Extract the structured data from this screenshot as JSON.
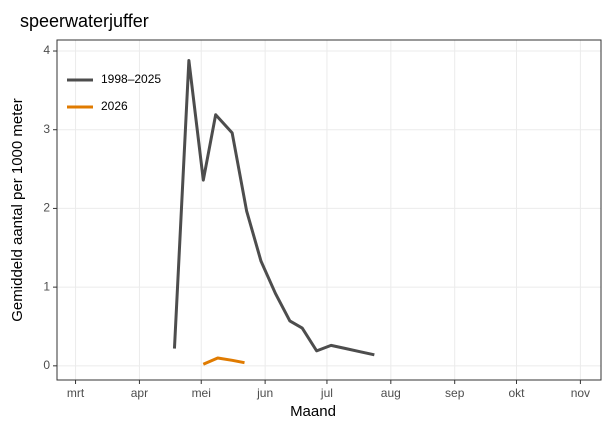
{
  "chart_data": {
    "type": "line",
    "title": "speerwaterjuffer",
    "x_label": "Maand",
    "y_label": "Gemiddeld aantal per 1000 meter",
    "series": [
      {
        "name": "1998–2025",
        "color": "#4d4d4d",
        "x": [
          108,
          115,
          122,
          128,
          136,
          143,
          150,
          157,
          164,
          170,
          177,
          184,
          191,
          198,
          205
        ],
        "values": [
          0.22,
          3.88,
          2.36,
          3.19,
          2.96,
          1.97,
          1.33,
          0.92,
          0.57,
          0.48,
          0.19,
          0.26,
          0.22,
          0.18,
          0.14
        ]
      },
      {
        "name": "2026",
        "color": "#e07b00",
        "x": [
          122,
          129,
          136,
          142
        ],
        "values": [
          0.02,
          0.1,
          0.07,
          0.04
        ]
      }
    ],
    "xlim": [
      51,
      315
    ],
    "xticks": [
      {
        "value": 60,
        "label": "mrt"
      },
      {
        "value": 91,
        "label": "apr"
      },
      {
        "value": 121,
        "label": "mei"
      },
      {
        "value": 152,
        "label": "jun"
      },
      {
        "value": 182,
        "label": "jul"
      },
      {
        "value": 213,
        "label": "aug"
      },
      {
        "value": 244,
        "label": "sep"
      },
      {
        "value": 274,
        "label": "okt"
      },
      {
        "value": 305,
        "label": "nov"
      }
    ],
    "ylim": [
      -0.18,
      4.14
    ],
    "yticks": [
      0,
      1,
      2,
      3,
      4
    ],
    "grid": true,
    "legend": "top-left"
  }
}
